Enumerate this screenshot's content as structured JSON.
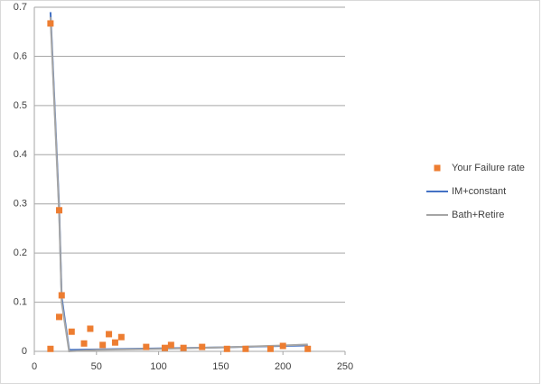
{
  "chart_data": {
    "type": "scatter",
    "series": [
      {
        "name": "Your Failure rate",
        "type": "scatter",
        "color": "#ed7d31",
        "x": [
          13,
          13,
          20,
          22,
          20,
          30,
          40,
          45,
          55,
          60,
          65,
          70,
          90,
          105,
          110,
          120,
          135,
          155,
          170,
          190,
          200,
          220
        ],
        "values": [
          0.667,
          0.005,
          0.287,
          0.114,
          0.07,
          0.04,
          0.016,
          0.046,
          0.013,
          0.035,
          0.018,
          0.029,
          0.009,
          0.007,
          0.013,
          0.007,
          0.009,
          0.005,
          0.005,
          0.005,
          0.011,
          0.005
        ]
      },
      {
        "name": "IM+constant",
        "type": "line",
        "color": "#4472c4",
        "x": [
          13,
          20,
          22,
          28,
          50,
          100,
          150,
          200,
          220
        ],
        "values": [
          0.69,
          0.29,
          0.11,
          0.003,
          0.004,
          0.006,
          0.008,
          0.011,
          0.012
        ]
      },
      {
        "name": "Bath+Retire",
        "type": "line",
        "color": "#a5a5a5",
        "x": [
          13,
          20,
          22,
          28,
          50,
          100,
          150,
          200,
          220
        ],
        "values": [
          0.68,
          0.28,
          0.1,
          0,
          0.003,
          0.005,
          0.008,
          0.012,
          0.014
        ]
      }
    ],
    "xlim": [
      0,
      250
    ],
    "xticks": [
      0,
      50,
      100,
      150,
      200,
      250
    ],
    "ylim": [
      0,
      0.7
    ],
    "yticks": [
      0,
      0.1,
      0.2,
      0.3,
      0.4,
      0.5,
      0.6,
      0.7
    ],
    "grid": true,
    "legend": "right"
  }
}
